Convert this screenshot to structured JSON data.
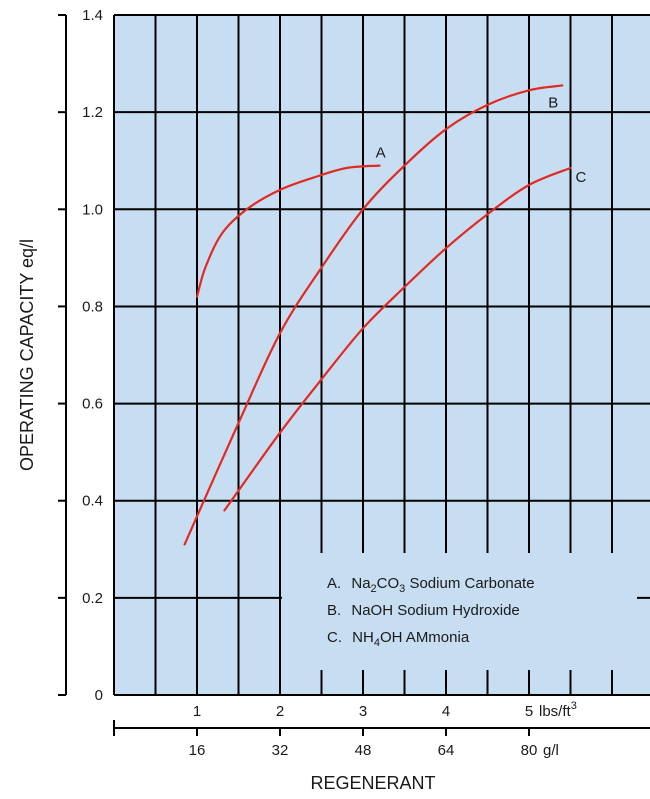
{
  "chart_data": {
    "type": "line",
    "ylabel": "OPERATING CAPACITY eq/l",
    "xlabel": "REGENERANT",
    "ylim": [
      0,
      1.4
    ],
    "xlim": [
      0,
      6.7
    ],
    "grid": true,
    "y_ticks": [
      {
        "value": 0,
        "label": "0"
      },
      {
        "value": 0.2,
        "label": "0.2"
      },
      {
        "value": 0.4,
        "label": "0.4"
      },
      {
        "value": 0.6,
        "label": "0.6"
      },
      {
        "value": 0.8,
        "label": "0.8"
      },
      {
        "value": 1.0,
        "label": "1.0"
      },
      {
        "value": 1.2,
        "label": "1.2"
      },
      {
        "value": 1.4,
        "label": "1.4"
      }
    ],
    "x_ticks_lbs": [
      {
        "value": 1,
        "label": "1"
      },
      {
        "value": 2,
        "label": "2"
      },
      {
        "value": 3,
        "label": "3"
      },
      {
        "value": 4,
        "label": "4"
      },
      {
        "value": 5,
        "label": "5"
      }
    ],
    "x_unit_lbs": {
      "base": "lbs/ft",
      "sup": "3"
    },
    "x_ticks_gl": [
      {
        "value": 1,
        "label": "16"
      },
      {
        "value": 2,
        "label": "32"
      },
      {
        "value": 3,
        "label": "48"
      },
      {
        "value": 4,
        "label": "64"
      },
      {
        "value": 5,
        "label": "80"
      }
    ],
    "x_unit_gl": "g/l",
    "series": [
      {
        "name": "A",
        "color": "#e02a23",
        "x": [
          1.0,
          1.1,
          1.3,
          1.6,
          2.0,
          2.4,
          2.8,
          3.2
        ],
        "y": [
          0.82,
          0.88,
          0.95,
          1.0,
          1.04,
          1.065,
          1.085,
          1.09
        ]
      },
      {
        "name": "B",
        "color": "#e02a23",
        "x": [
          0.85,
          1.5,
          2.0,
          2.5,
          3.0,
          3.5,
          4.0,
          4.5,
          5.0,
          5.4
        ],
        "y": [
          0.31,
          0.56,
          0.745,
          0.88,
          1.0,
          1.09,
          1.165,
          1.215,
          1.245,
          1.255
        ]
      },
      {
        "name": "C",
        "color": "#e02a23",
        "x": [
          1.33,
          2.0,
          2.5,
          3.0,
          3.5,
          4.0,
          4.5,
          5.0,
          5.5
        ],
        "y": [
          0.38,
          0.54,
          0.65,
          0.755,
          0.84,
          0.92,
          0.99,
          1.05,
          1.085
        ]
      }
    ],
    "curve_labels": [
      "A",
      "B",
      "C"
    ],
    "legend": {
      "placement": "bottom-right",
      "entries": [
        {
          "letter": "A.",
          "pre": "Na",
          "sub1": "2",
          "mid": "CO",
          "sub2": "3",
          "post": " Sodium Carbonate"
        },
        {
          "letter": "B.",
          "pre": "NaOH Sodium Hydroxide",
          "sub1": "",
          "mid": "",
          "sub2": "",
          "post": ""
        },
        {
          "letter": "C.",
          "pre": "NH",
          "sub1": "4",
          "mid": "OH AMmonia",
          "sub2": "",
          "post": ""
        }
      ]
    },
    "colors": {
      "plot_background": "#c7def2",
      "grid": "#000000",
      "curve": "#e02a23"
    }
  }
}
